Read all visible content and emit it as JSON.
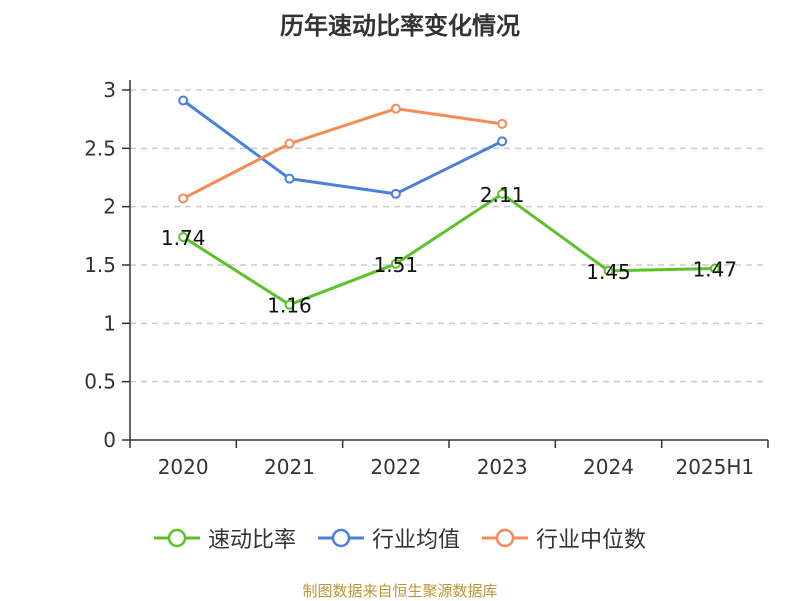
{
  "chart_data": {
    "type": "line",
    "title": "历年速动比率变化情况",
    "categories": [
      "2020",
      "2021",
      "2022",
      "2023",
      "2024",
      "2025H1"
    ],
    "ylim": [
      0,
      3
    ],
    "yticks": [
      "0",
      "0.5",
      "1",
      "1.5",
      "2",
      "2.5",
      "3"
    ],
    "grid": true,
    "legend_position": "bottom",
    "series": [
      {
        "name": "速动比率",
        "color": "#5bc22a",
        "values": [
          1.74,
          1.16,
          1.51,
          2.11,
          1.45,
          1.47
        ],
        "labels": [
          "1.74",
          "1.16",
          "1.51",
          "2.11",
          "1.45",
          "1.47"
        ]
      },
      {
        "name": "行业均值",
        "color": "#4a7fdb",
        "values": [
          2.91,
          2.24,
          2.11,
          2.56,
          null,
          null
        ]
      },
      {
        "name": "行业中位数",
        "color": "#f78b56",
        "values": [
          2.07,
          2.54,
          2.84,
          2.71,
          null,
          null
        ]
      }
    ]
  },
  "source_note": "制图数据来自恒生聚源数据库"
}
